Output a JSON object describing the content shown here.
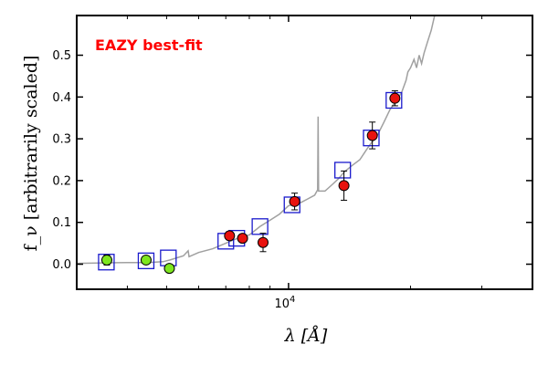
{
  "chart_data": {
    "type": "scatter",
    "annotation": "EAZY best-fit",
    "xlabel": "λ [Å]",
    "ylabel": "f_ν [arbitrarily scaled]",
    "x_scale": "log",
    "xlim": [
      3000,
      40000
    ],
    "ylim": [
      -0.06,
      0.595
    ],
    "y_ticks": [
      "0.0",
      "0.1",
      "0.2",
      "0.3",
      "0.4",
      "0.5"
    ],
    "y_tick_values": [
      0.0,
      0.1,
      0.2,
      0.3,
      0.4,
      0.5
    ],
    "x_ticks": [
      {
        "label": "10",
        "sup": "4",
        "value": 10000
      }
    ],
    "colors": {
      "model": "#a0a0a0",
      "model_photometry": "#1a1acc",
      "observed_red": "#e8120e",
      "observed_green": "#7ee61f",
      "annotation": "#ff0000"
    },
    "model_photometry": [
      {
        "x": 3550,
        "y": 0.005
      },
      {
        "x": 4450,
        "y": 0.008
      },
      {
        "x": 5050,
        "y": 0.015
      },
      {
        "x": 7000,
        "y": 0.055
      },
      {
        "x": 7450,
        "y": 0.062
      },
      {
        "x": 8500,
        "y": 0.09
      },
      {
        "x": 10200,
        "y": 0.142
      },
      {
        "x": 13600,
        "y": 0.225
      },
      {
        "x": 16000,
        "y": 0.302
      },
      {
        "x": 18200,
        "y": 0.392
      }
    ],
    "observed_red": [
      {
        "x": 7150,
        "y": 0.068,
        "err": 0.01
      },
      {
        "x": 7700,
        "y": 0.062,
        "err": 0.007
      },
      {
        "x": 8650,
        "y": 0.052,
        "err": 0.022
      },
      {
        "x": 10350,
        "y": 0.15,
        "err": 0.02
      },
      {
        "x": 13700,
        "y": 0.188,
        "err": 0.035
      },
      {
        "x": 16100,
        "y": 0.308,
        "err": 0.032
      },
      {
        "x": 18300,
        "y": 0.397,
        "err": 0.018
      }
    ],
    "observed_green": [
      {
        "x": 3560,
        "y": 0.01,
        "err": 0.012
      },
      {
        "x": 4450,
        "y": 0.01,
        "err": 0.006
      },
      {
        "x": 5080,
        "y": -0.01,
        "err": 0.005
      }
    ],
    "model_spectrum": [
      [
        3000,
        0.002
      ],
      [
        3500,
        0.003
      ],
      [
        4000,
        0.004
      ],
      [
        4500,
        0.004
      ],
      [
        4900,
        0.006
      ],
      [
        5100,
        0.01
      ],
      [
        5500,
        0.02
      ],
      [
        5650,
        0.032
      ],
      [
        5680,
        0.018
      ],
      [
        6000,
        0.028
      ],
      [
        6500,
        0.037
      ],
      [
        7000,
        0.05
      ],
      [
        7300,
        0.058
      ],
      [
        7600,
        0.064
      ],
      [
        8000,
        0.07
      ],
      [
        8500,
        0.09
      ],
      [
        9000,
        0.105
      ],
      [
        9500,
        0.12
      ],
      [
        10000,
        0.14
      ],
      [
        10600,
        0.145
      ],
      [
        11100,
        0.155
      ],
      [
        11600,
        0.165
      ],
      [
        11800,
        0.178
      ],
      [
        11830,
        0.353
      ],
      [
        11860,
        0.175
      ],
      [
        12300,
        0.175
      ],
      [
        12800,
        0.19
      ],
      [
        13300,
        0.205
      ],
      [
        13700,
        0.22
      ],
      [
        14300,
        0.235
      ],
      [
        15000,
        0.25
      ],
      [
        15600,
        0.275
      ],
      [
        16000,
        0.29
      ],
      [
        16600,
        0.31
      ],
      [
        17200,
        0.34
      ],
      [
        17800,
        0.37
      ],
      [
        18400,
        0.39
      ],
      [
        19000,
        0.41
      ],
      [
        19500,
        0.44
      ],
      [
        19700,
        0.46
      ],
      [
        20000,
        0.47
      ],
      [
        20400,
        0.49
      ],
      [
        20700,
        0.47
      ],
      [
        21000,
        0.5
      ],
      [
        21300,
        0.48
      ],
      [
        21600,
        0.505
      ],
      [
        22000,
        0.53
      ],
      [
        22500,
        0.56
      ],
      [
        23000,
        0.6
      ]
    ]
  }
}
